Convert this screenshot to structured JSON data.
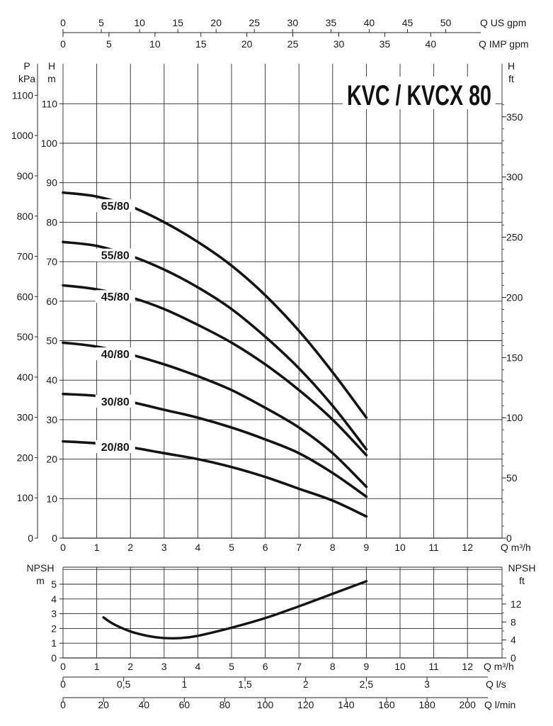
{
  "title": "KVC / KVCX 80",
  "chart_data": [
    {
      "type": "line",
      "title": "KVC / KVCX 80",
      "xlabel": "Q m³/h",
      "ylabel": "H m",
      "x_ticks": [
        0,
        1,
        2,
        3,
        4,
        5,
        6,
        7,
        8,
        9,
        10,
        11,
        12
      ],
      "xlim": [
        0,
        13
      ],
      "ylim": [
        0,
        110
      ],
      "axes": {
        "h_m": {
          "label_top": "H",
          "label_bottom": "m",
          "ticks": [
            0,
            10,
            20,
            30,
            40,
            50,
            60,
            70,
            80,
            90,
            100,
            110
          ]
        },
        "p_kpa": {
          "label_top": "P",
          "label_bottom": "kPa",
          "ticks": [
            0,
            100,
            200,
            300,
            400,
            500,
            600,
            700,
            800,
            900,
            1000,
            1100
          ]
        },
        "h_ft": {
          "label_top": "H",
          "label_bottom": "ft",
          "ticks": [
            0,
            50,
            100,
            150,
            200,
            250,
            300,
            350
          ]
        },
        "q_us_gpm": {
          "label": "Q US gpm",
          "ticks": [
            0,
            5,
            10,
            15,
            20,
            25,
            30,
            35,
            40,
            45,
            50
          ]
        },
        "q_imp_gpm": {
          "label": "Q IMP gpm",
          "ticks": [
            0,
            5,
            10,
            15,
            20,
            25,
            30,
            35,
            40
          ]
        }
      },
      "grid": true,
      "series": [
        {
          "name": "65/80",
          "x": [
            0,
            1,
            2,
            3,
            4,
            5,
            6,
            7,
            8,
            9
          ],
          "y": [
            87.5,
            86.5,
            84,
            80,
            75,
            69,
            61.5,
            52.5,
            42,
            30.5
          ]
        },
        {
          "name": "55/80",
          "x": [
            0,
            1,
            2,
            3,
            4,
            5,
            6,
            7,
            8,
            9
          ],
          "y": [
            75,
            74,
            71.5,
            68,
            63.5,
            58,
            51,
            43,
            33.5,
            22.5
          ]
        },
        {
          "name": "45/80",
          "x": [
            0,
            1,
            2,
            3,
            4,
            5,
            6,
            7,
            8,
            9
          ],
          "y": [
            64,
            63,
            61,
            58,
            54,
            49.5,
            44,
            37.5,
            30,
            21
          ]
        },
        {
          "name": "40/80",
          "x": [
            0,
            1,
            2,
            3,
            4,
            5,
            6,
            7,
            8,
            9
          ],
          "y": [
            49.5,
            48.5,
            46.5,
            44,
            41,
            37.5,
            33,
            28,
            21.5,
            13
          ]
        },
        {
          "name": "30/80",
          "x": [
            0,
            1,
            2,
            3,
            4,
            5,
            6,
            7,
            8,
            9
          ],
          "y": [
            36.5,
            36,
            34.5,
            32.5,
            30.5,
            28,
            25,
            21.5,
            16.5,
            10.5
          ]
        },
        {
          "name": "20/80",
          "x": [
            0,
            1,
            2,
            3,
            4,
            5,
            6,
            7,
            8,
            9
          ],
          "y": [
            24.5,
            24,
            23,
            21.5,
            20,
            18,
            15.5,
            12.5,
            9.5,
            5.5
          ]
        }
      ]
    },
    {
      "type": "line",
      "xlabel": "Q m³/h",
      "ylabel": "NPSH m",
      "x_ticks": [
        0,
        1,
        2,
        3,
        4,
        5,
        6,
        7,
        8,
        9,
        10,
        11,
        12
      ],
      "xlim": [
        0,
        13
      ],
      "ylim": [
        0,
        5
      ],
      "axes": {
        "npsh_m": {
          "label_top": "NPSH",
          "label_bottom": "m",
          "ticks": [
            0,
            1,
            2,
            3,
            4,
            5
          ]
        },
        "npsh_ft": {
          "label_top": "NPSH",
          "label_bottom": "ft",
          "ticks": [
            0,
            4,
            8,
            12
          ]
        },
        "q_ls": {
          "label": "Q l/s",
          "ticks": [
            "0",
            "0,5",
            "1",
            "1,5",
            "2",
            "2,5",
            "3"
          ]
        },
        "q_lmin": {
          "label": "Q l/min",
          "ticks": [
            0,
            20,
            40,
            60,
            80,
            100,
            120,
            140,
            160,
            180,
            200
          ]
        }
      },
      "grid": true,
      "series": [
        {
          "name": "NPSH",
          "x": [
            1.2,
            1.5,
            2,
            2.5,
            3,
            3.5,
            4,
            5,
            6,
            7,
            8,
            9
          ],
          "y": [
            2.75,
            2.3,
            1.8,
            1.5,
            1.35,
            1.35,
            1.5,
            2.05,
            2.7,
            3.5,
            4.35,
            5.2
          ]
        }
      ]
    }
  ]
}
